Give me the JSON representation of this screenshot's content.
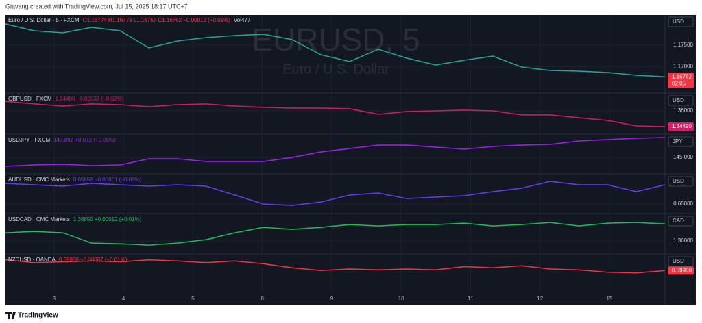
{
  "header": "Giavang created with TradingView.com, Jul 15, 2025 18:17 UTC+7",
  "footer": "TradingView",
  "chart_data": [
    {
      "type": "line",
      "symbol": "Euro / U.S. Dollar · 5 · FXCM",
      "quote": "O1.16774 H1.16779 L1.16757 C1.16762 −0.00012 (−0.01%)",
      "volume": "Vol477",
      "watermark": "EURUSD, 5",
      "watermark_sub": "Euro / U.S. Dollar",
      "currency": "USD",
      "price_label": "1.16762",
      "countdown": "02:05",
      "color": "#26a69a",
      "price_color": "#f23645",
      "values": [
        1.17993,
        1.17834,
        1.17786,
        1.17913,
        1.17834,
        1.17435,
        1.17595,
        1.17674,
        1.17722,
        1.17754,
        1.17627,
        1.17276,
        1.17117,
        1.17404,
        1.17196,
        1.17037,
        1.17149,
        1.17244,
        1.16989,
        1.1691,
        1.16894,
        1.16862,
        1.16798,
        1.16762
      ],
      "xlim": [
        2.3,
        11.8
      ],
      "ylim": [
        1.164,
        1.182
      ],
      "yticks": [
        {
          "value": 1.175,
          "label": "1.17500"
        },
        {
          "value": 1.17,
          "label": "1.17000"
        }
      ]
    },
    {
      "type": "line",
      "symbol": "GBPUSD · FXCM",
      "quote": "1.34490 −0.00033 (−0.02%)",
      "currency": "USD",
      "price_label": "1.34490",
      "color": "#d81b60",
      "price_color": "#d81b60",
      "values": [
        1.3692,
        1.3666,
        1.3646,
        1.3666,
        1.3659,
        1.3639,
        1.3659,
        1.3666,
        1.3646,
        1.3633,
        1.3626,
        1.3626,
        1.362,
        1.3567,
        1.3593,
        1.36,
        1.3607,
        1.36,
        1.3561,
        1.3561,
        1.3534,
        1.3508,
        1.3455,
        1.3449
      ],
      "xlim": [
        2.3,
        11.8
      ],
      "ylim": [
        1.3383,
        1.3764
      ],
      "yticks": [
        {
          "value": 1.36,
          "label": "1.36000"
        }
      ]
    },
    {
      "type": "line",
      "symbol": "USDJPY · FXCM",
      "quote": "147.897 +0.072 (+0.05%)",
      "currency": "JPY",
      "color": "#a020f0",
      "values": [
        143.7,
        143.9,
        144.0,
        143.8,
        143.9,
        144.8,
        144.8,
        144.4,
        144.4,
        144.4,
        145.0,
        145.8,
        146.3,
        146.8,
        146.8,
        146.5,
        146.2,
        146.6,
        146.8,
        146.9,
        147.4,
        147.6,
        147.8,
        147.897
      ],
      "xlim": [
        2.3,
        11.8
      ],
      "ylim": [
        142.7,
        148.3
      ],
      "yticks": [
        {
          "value": 145,
          "label": "145.000"
        }
      ]
    },
    {
      "type": "line",
      "symbol": "AUDUSD · CMC Markets",
      "quote": "0.65652 −0.00001 (−0.00%)",
      "currency": "USD",
      "color": "#6a3cf0",
      "values": [
        0.65699,
        0.65652,
        0.65606,
        0.65699,
        0.65652,
        0.65606,
        0.65652,
        0.65606,
        0.65303,
        0.65,
        0.64953,
        0.6507,
        0.65303,
        0.65373,
        0.65186,
        0.65233,
        0.6528,
        0.65419,
        0.65536,
        0.65769,
        0.65652,
        0.65652,
        0.65419,
        0.65652
      ],
      "xlim": [
        2.3,
        11.8
      ],
      "ylim": [
        0.647,
        0.66
      ],
      "yticks": [
        {
          "value": 0.65,
          "label": "0.65000"
        }
      ]
    },
    {
      "type": "line",
      "symbol": "USDCAD · CMC Markets",
      "quote": "1.36850 +0.00012 (+0.01%)",
      "currency": "CAD",
      "color": "#1ebd5a",
      "values": [
        1.36408,
        1.36476,
        1.36408,
        1.35898,
        1.35864,
        1.35796,
        1.35898,
        1.36068,
        1.36408,
        1.3668,
        1.36578,
        1.3668,
        1.36816,
        1.36748,
        1.36816,
        1.36816,
        1.36884,
        1.36748,
        1.36816,
        1.36918,
        1.36748,
        1.36884,
        1.36918,
        1.3685
      ],
      "xlim": [
        2.3,
        11.8
      ],
      "ylim": [
        1.3539,
        1.3733
      ],
      "yticks": [
        {
          "value": 1.36,
          "label": "1.36000"
        }
      ]
    },
    {
      "type": "line",
      "symbol": "NZDUSD · OANDA",
      "quote": "0.59950 −0.00007 (−0.01%)",
      "currency": "USD",
      "price_label": "0.59950",
      "color": "#f23645",
      "price_color": "#f23645",
      "values": [
        0.6022,
        0.6015,
        0.6017,
        0.6019,
        0.6017,
        0.6022,
        0.6019,
        0.6015,
        0.6019,
        0.6012,
        0.6002,
        0.5995,
        0.5999,
        0.5997,
        0.5999,
        0.5997,
        0.6005,
        0.6002,
        0.6007,
        0.5999,
        0.5997,
        0.5991,
        0.5989,
        0.5995
      ],
      "xlim": [
        2.3,
        11.8
      ],
      "ylim": [
        0.5939,
        0.6035
      ],
      "xticks": [
        3,
        4,
        5,
        {
          "value": 6,
          "label": "8"
        },
        {
          "value": 7,
          "label": "9"
        },
        {
          "value": 8,
          "label": "10"
        },
        {
          "value": 9,
          "label": "11"
        },
        {
          "value": 10,
          "label": "12"
        },
        {
          "value": 11,
          "label": "15"
        }
      ]
    }
  ]
}
